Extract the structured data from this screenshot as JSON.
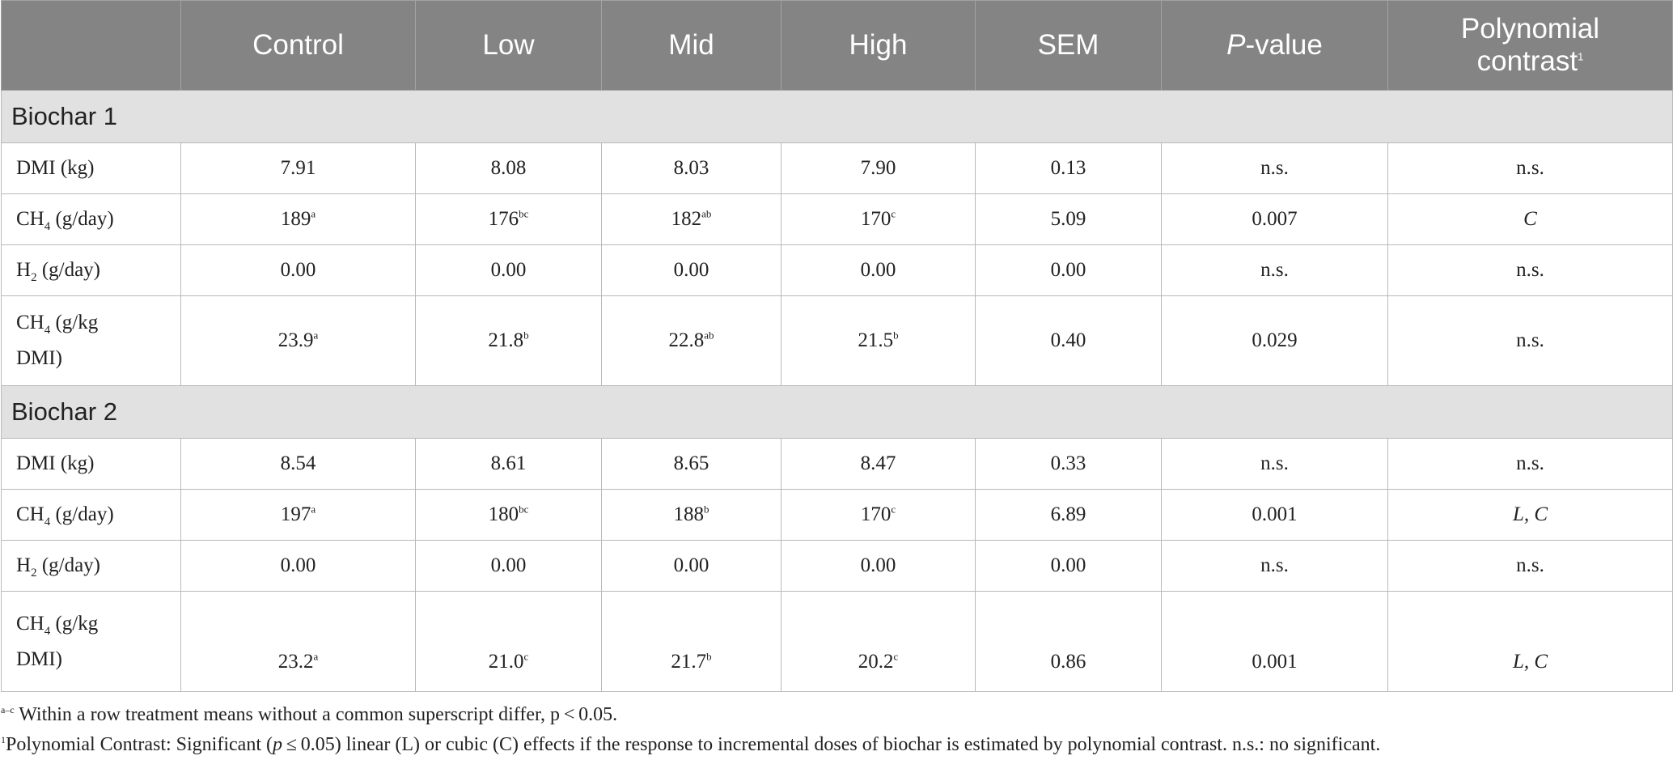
{
  "header": {
    "col1": "",
    "col2": "Control",
    "col3": "Low",
    "col4": "Mid",
    "col5": "High",
    "col6": "SEM",
    "col7_italic": "P",
    "col7_rest": "-value",
    "col8_line1": "Polynomial",
    "col8_line2": "contrast",
    "col8_sup": "1"
  },
  "sections": [
    {
      "title": "Biochar 1",
      "rows": [
        {
          "lab_pre": "DMI (kg)",
          "lab_sub": "",
          "lab_post": "",
          "lab_line2": "",
          "v": [
            [
              "7.91",
              ""
            ],
            [
              "8.08",
              ""
            ],
            [
              "8.03",
              ""
            ],
            [
              "7.90",
              ""
            ]
          ],
          "sem": "0.13",
          "p": "n.s.",
          "poly": "n.s.",
          "poly_italic": false
        },
        {
          "lab_pre": "CH",
          "lab_sub": "4",
          "lab_post": " (g/day)",
          "lab_line2": "",
          "v": [
            [
              "189",
              "a"
            ],
            [
              "176",
              "bc"
            ],
            [
              "182",
              "ab"
            ],
            [
              "170",
              "c"
            ]
          ],
          "sem": "5.09",
          "p": "0.007",
          "poly": "C",
          "poly_italic": true
        },
        {
          "lab_pre": "H",
          "lab_sub": "2",
          "lab_post": " (g/day)",
          "lab_line2": "",
          "v": [
            [
              "0.00",
              ""
            ],
            [
              "0.00",
              ""
            ],
            [
              "0.00",
              ""
            ],
            [
              "0.00",
              ""
            ]
          ],
          "sem": "0.00",
          "p": "n.s.",
          "poly": "n.s.",
          "poly_italic": false
        },
        {
          "lab_pre": "CH",
          "lab_sub": "4",
          "lab_post": " (g/kg",
          "lab_line2": "DMI)",
          "v": [
            [
              "23.9",
              "a"
            ],
            [
              "21.8",
              "b"
            ],
            [
              "22.8",
              "ab"
            ],
            [
              "21.5",
              "b"
            ]
          ],
          "sem": "0.40",
          "p": "0.029",
          "poly": "n.s.",
          "poly_italic": false
        }
      ]
    },
    {
      "title": "Biochar 2",
      "rows": [
        {
          "lab_pre": "DMI (kg)",
          "lab_sub": "",
          "lab_post": "",
          "lab_line2": "",
          "v": [
            [
              "8.54",
              ""
            ],
            [
              "8.61",
              ""
            ],
            [
              "8.65",
              ""
            ],
            [
              "8.47",
              ""
            ]
          ],
          "sem": "0.33",
          "p": "n.s.",
          "poly": "n.s.",
          "poly_italic": false
        },
        {
          "lab_pre": "CH",
          "lab_sub": "4",
          "lab_post": " (g/day)",
          "lab_line2": "",
          "v": [
            [
              "197",
              "a"
            ],
            [
              "180",
              "bc"
            ],
            [
              "188",
              "b"
            ],
            [
              "170",
              "c"
            ]
          ],
          "sem": "6.89",
          "p": "0.001",
          "poly": "L, C",
          "poly_italic": true
        },
        {
          "lab_pre": "H",
          "lab_sub": "2",
          "lab_post": " (g/day)",
          "lab_line2": "",
          "v": [
            [
              "0.00",
              ""
            ],
            [
              "0.00",
              ""
            ],
            [
              "0.00",
              ""
            ],
            [
              "0.00",
              ""
            ]
          ],
          "sem": "0.00",
          "p": "n.s.",
          "poly": "n.s.",
          "poly_italic": false
        },
        {
          "lab_pre": "CH",
          "lab_sub": "4",
          "lab_post": " (g/kg",
          "lab_line2": "DMI)",
          "v": [
            [
              "23.2",
              "a"
            ],
            [
              "21.0",
              "c"
            ],
            [
              "21.7",
              "b"
            ],
            [
              "20.2",
              "c"
            ]
          ],
          "sem": "0.86",
          "p": "0.001",
          "poly": "L, C",
          "poly_italic": true
        }
      ]
    }
  ],
  "footnotes": {
    "fn1_sup": "a–c",
    "fn1_text": " Within a row treatment means without a common superscript differ, p < 0.05.",
    "fn2_sup": "1",
    "fn2_text_a": "Polynomial Contrast: Significant (",
    "fn2_text_p": "p",
    "fn2_text_b": " ≤ 0.05) linear (L) or cubic (C) effects if the response to incremental doses of biochar is estimated by polynomial contrast. n.s.: no significant."
  }
}
